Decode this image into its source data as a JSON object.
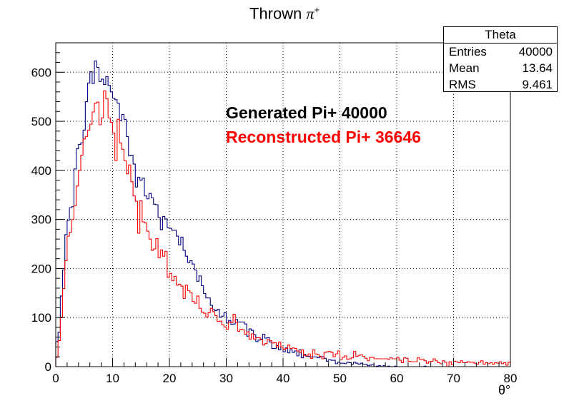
{
  "title_text": "Thrown",
  "title_pi": "π",
  "title_sup": "+",
  "stats_box": {
    "name": "Theta",
    "entries_label": "Entries",
    "entries_value": "40000",
    "mean_label": "Mean",
    "mean_value": "13.64",
    "rms_label": "RMS",
    "rms_value": "9.461"
  },
  "annotations": {
    "generated": "Generated Pi+ 40000",
    "reconstructed": "Reconstructed Pi+ 36646"
  },
  "colors": {
    "generated": "#000080",
    "reconstructed": "#ff0000",
    "generated_text": "#000000",
    "reconstructed_text": "#ff0000"
  },
  "chart_data": {
    "type": "histogram",
    "title": "Thrown π+",
    "xlabel": "θ°",
    "ylabel": "",
    "xlim": [
      0,
      80
    ],
    "ylim": [
      0,
      660
    ],
    "xticks": [
      0,
      10,
      20,
      30,
      40,
      50,
      60,
      70,
      80
    ],
    "yticks": [
      0,
      100,
      200,
      300,
      400,
      500,
      600
    ],
    "grid": true,
    "bin_width": 0.4,
    "series": [
      {
        "name": "Generated Pi+ 40000",
        "anchors": [
          [
            0,
            20
          ],
          [
            0.5,
            60
          ],
          [
            1,
            140
          ],
          [
            1.5,
            230
          ],
          [
            2,
            290
          ],
          [
            3,
            340
          ],
          [
            4,
            440
          ],
          [
            5,
            510
          ],
          [
            6,
            560
          ],
          [
            7,
            600
          ],
          [
            8,
            595
          ],
          [
            9,
            580
          ],
          [
            10,
            560
          ],
          [
            11,
            530
          ],
          [
            12,
            490
          ],
          [
            13,
            440
          ],
          [
            14,
            400
          ],
          [
            15,
            380
          ],
          [
            16,
            350
          ],
          [
            17,
            330
          ],
          [
            18,
            320
          ],
          [
            19,
            300
          ],
          [
            20,
            290
          ],
          [
            21,
            280
          ],
          [
            22,
            250
          ],
          [
            23,
            220
          ],
          [
            24,
            200
          ],
          [
            25,
            175
          ],
          [
            26,
            160
          ],
          [
            27,
            140
          ],
          [
            28,
            125
          ],
          [
            30,
            105
          ],
          [
            32,
            88
          ],
          [
            34,
            70
          ],
          [
            36,
            58
          ],
          [
            38,
            48
          ],
          [
            40,
            38
          ],
          [
            42,
            30
          ],
          [
            44,
            25
          ],
          [
            46,
            20
          ],
          [
            48,
            14
          ],
          [
            50,
            10
          ],
          [
            52,
            7
          ],
          [
            54,
            4
          ],
          [
            56,
            2
          ],
          [
            58,
            1
          ],
          [
            60,
            0
          ],
          [
            80,
            0
          ]
        ]
      },
      {
        "name": "Reconstructed Pi+ 36646",
        "anchors": [
          [
            0,
            10
          ],
          [
            0.5,
            40
          ],
          [
            1,
            100
          ],
          [
            1.5,
            180
          ],
          [
            2,
            250
          ],
          [
            3,
            310
          ],
          [
            4,
            390
          ],
          [
            5,
            460
          ],
          [
            6,
            510
          ],
          [
            7,
            530
          ],
          [
            8,
            530
          ],
          [
            9,
            515
          ],
          [
            10,
            495
          ],
          [
            11,
            470
          ],
          [
            12,
            430
          ],
          [
            13,
            380
          ],
          [
            14,
            340
          ],
          [
            15,
            310
          ],
          [
            16,
            280
          ],
          [
            17,
            260
          ],
          [
            18,
            240
          ],
          [
            19,
            220
          ],
          [
            20,
            200
          ],
          [
            21,
            180
          ],
          [
            22,
            160
          ],
          [
            23,
            150
          ],
          [
            24,
            140
          ],
          [
            25,
            130
          ],
          [
            26,
            120
          ],
          [
            28,
            100
          ],
          [
            30,
            90
          ],
          [
            32,
            75
          ],
          [
            34,
            62
          ],
          [
            36,
            52
          ],
          [
            38,
            45
          ],
          [
            40,
            38
          ],
          [
            42,
            33
          ],
          [
            44,
            29
          ],
          [
            46,
            26
          ],
          [
            48,
            24
          ],
          [
            50,
            22
          ],
          [
            55,
            18
          ],
          [
            60,
            15
          ],
          [
            65,
            12
          ],
          [
            70,
            10
          ],
          [
            75,
            8
          ],
          [
            80,
            6
          ]
        ]
      }
    ]
  }
}
